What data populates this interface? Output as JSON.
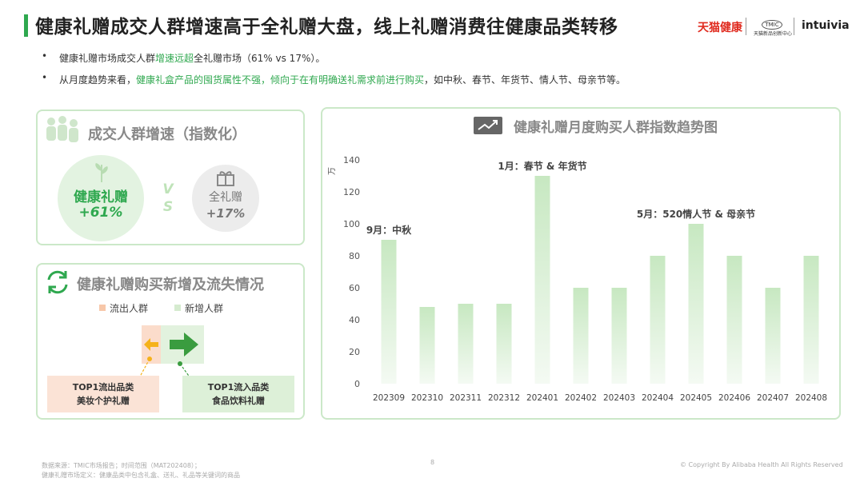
{
  "header": {
    "title": "健康礼赠成交人群增速高于全礼赠大盘，线上礼赠消费往健康品类转移",
    "brand_tmall_health": "天猫健康",
    "brand_tmic_logo": "TMIC",
    "brand_tmic_sub": "天猫新品创新中心",
    "brand_intuivia": "intuivia"
  },
  "bullets": {
    "b1_pre": "健康礼赠市场成交人群",
    "b1_hl": "增速远超",
    "b1_post": "全礼赠市场（61% vs 17%）。",
    "b2_pre": "从月度趋势来看，",
    "b2_hl": "健康礼盒产品的囤货属性不强，倾向于在有明确送礼需求前进行购买",
    "b2_post": "，如中秋、春节、年货节、情人节、母亲节等。"
  },
  "growth_panel": {
    "title": "成交人群增速（指数化）",
    "health_label": "健康礼赠",
    "health_value": "+61%",
    "vs_v": "V",
    "vs_s": "S",
    "all_label": "全礼赠",
    "all_value": "+17%"
  },
  "flow_panel": {
    "title": "健康礼赠购买新增及流失情况",
    "legend_out": "流出人群",
    "legend_in": "新增人群",
    "out_box_line1": "TOP1流出品类",
    "out_box_line2": "美妆个护礼赠",
    "in_box_line1": "TOP1流入品类",
    "in_box_line2": "食品饮料礼赠"
  },
  "chart_data": {
    "type": "bar",
    "title": "健康礼赠月度购买人群指数趋势图",
    "ylabel": "万",
    "ylim": [
      0,
      140
    ],
    "yticks": [
      0,
      20,
      40,
      60,
      80,
      100,
      120,
      140
    ],
    "categories": [
      "202309",
      "202310",
      "202311",
      "202312",
      "202401",
      "202402",
      "202403",
      "202404",
      "202405",
      "202406",
      "202407",
      "202408"
    ],
    "values": [
      90,
      48,
      50,
      50,
      130,
      60,
      60,
      80,
      100,
      80,
      60,
      80
    ],
    "annotations": [
      {
        "category": "202309",
        "text": "9月：中秋"
      },
      {
        "category": "202401",
        "text": "1月：春节 & 年货节"
      },
      {
        "category": "202405",
        "text": "5月：520情人节 & 母亲节"
      }
    ],
    "bar_color_top": "#c7e8c1",
    "bar_color_bottom": "#f4faf3"
  },
  "footer": {
    "source": "数据来源：TMIC市场报告；时间范围（MAT202408）；",
    "definition": "健康礼赠市场定义：健康品类中包含礼盒、送礼、礼品等关键词的商品",
    "page_number": "8",
    "copyright": "© Copyright By Alibaba Health All Rights Reserved"
  },
  "colors": {
    "accent_green": "#2fa84f",
    "panel_border": "#cbe8c8",
    "out_orange": "#f2b48f",
    "in_green": "#b9dfb2"
  }
}
